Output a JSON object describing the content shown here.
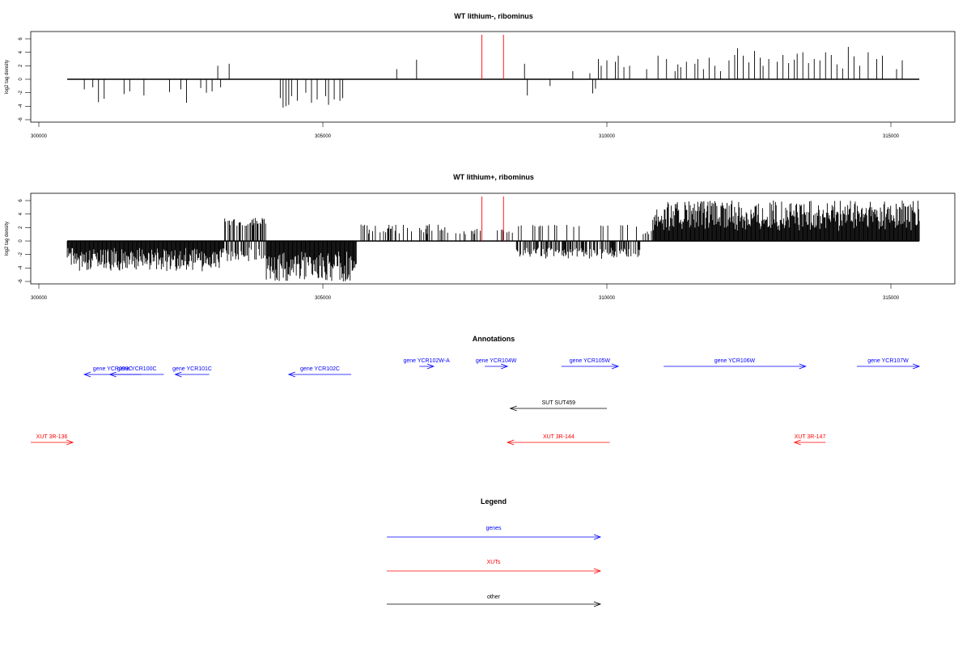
{
  "colors": {
    "axis": "#000000",
    "track": "#000000",
    "highlight": "#ff0000",
    "gene": "#0000ff",
    "xut": "#ff0000",
    "other": "#000000"
  },
  "chart_data": [
    {
      "type": "bar",
      "title": "WT lithium-, ribominus",
      "ylabel": "log2 tag density",
      "xlim": [
        300000,
        316000
      ],
      "ylim": [
        -6,
        7
      ],
      "xticks": [
        "300000",
        "305000",
        "310000",
        "315000"
      ],
      "yticks": [
        "-6",
        "-4",
        "-2",
        "0",
        "2",
        "4",
        "6"
      ],
      "baseline": [
        300500,
        315500
      ],
      "highlight_x": [
        307800,
        308180
      ],
      "x": [
        300800,
        300950,
        301050,
        301150,
        301500,
        301600,
        301850,
        302300,
        302500,
        302600,
        302850,
        302950,
        303050,
        303150,
        303200,
        303350,
        304250,
        304300,
        304350,
        304400,
        304450,
        304550,
        304700,
        304800,
        304900,
        305050,
        305100,
        305200,
        305300,
        305350,
        306300,
        306650,
        308550,
        308600,
        309000,
        309400,
        309700,
        309750,
        309800,
        309850,
        309900,
        310000,
        310150,
        310200,
        310300,
        310400,
        310700,
        310900,
        311050,
        311200,
        311250,
        311300,
        311400,
        311550,
        311600,
        311700,
        311800,
        311900,
        312000,
        312150,
        312250,
        312300,
        312400,
        312500,
        312600,
        312700,
        312750,
        312850,
        313000,
        313100,
        313200,
        313300,
        313350,
        313450,
        313550,
        313650,
        313750,
        313850,
        313950,
        314050,
        314150,
        314250,
        314350,
        314450,
        314600,
        314750,
        314850,
        315100,
        315200
      ],
      "values": [
        -1.5,
        -1.2,
        -3.4,
        -2.9,
        -2.2,
        -1.8,
        -2.4,
        -1.9,
        -1.5,
        -3.5,
        -1.3,
        -2.0,
        -1.8,
        2.0,
        -1.2,
        2.3,
        -2.8,
        -4.2,
        -4.0,
        -3.8,
        -2.5,
        -3.2,
        -2.0,
        -3.5,
        -3.0,
        -2.5,
        -3.8,
        -3.0,
        -3.2,
        -2.8,
        1.5,
        2.9,
        2.3,
        -2.4,
        -1.0,
        1.2,
        0.9,
        -2.1,
        -1.4,
        3.0,
        2.0,
        2.8,
        2.6,
        3.5,
        1.8,
        2.0,
        1.5,
        3.5,
        3.0,
        1.2,
        2.2,
        1.8,
        2.6,
        2.3,
        3.0,
        1.5,
        3.2,
        2.0,
        1.2,
        2.8,
        3.6,
        4.6,
        3.5,
        2.5,
        4.2,
        3.2,
        2.0,
        3.0,
        2.6,
        3.6,
        2.4,
        2.9,
        3.8,
        4.0,
        2.4,
        3.0,
        2.8,
        4.0,
        3.6,
        2.2,
        1.6,
        4.8,
        3.4,
        2.0,
        4.0,
        3.0,
        3.5,
        1.5,
        2.8
      ]
    },
    {
      "type": "bar",
      "title": "WT lithium+, ribominus",
      "ylabel": "log2 tag density",
      "xlim": [
        300000,
        316000
      ],
      "ylim": [
        -6,
        7
      ],
      "xticks": [
        "300000",
        "305000",
        "310000",
        "315000"
      ],
      "yticks": [
        "-6",
        "-4",
        "-2",
        "0",
        "2",
        "4",
        "6"
      ],
      "baseline": [
        300500,
        315500
      ],
      "highlight_x": [
        307800,
        308180
      ]
    },
    {
      "type": "table",
      "title": "Annotations",
      "features": [
        {
          "label": "gene YCR099C",
          "start": 300800,
          "end": 301800,
          "strand": "-",
          "kind": "gene",
          "row": 1
        },
        {
          "label": "gene YCR100C",
          "start": 301250,
          "end": 302200,
          "strand": "-",
          "kind": "gene",
          "row": 1
        },
        {
          "label": "gene YCR101C",
          "start": 302400,
          "end": 303000,
          "strand": "-",
          "kind": "gene",
          "row": 1
        },
        {
          "label": "gene YCR102C",
          "start": 304400,
          "end": 305500,
          "strand": "-",
          "kind": "gene",
          "row": 1
        },
        {
          "label": "gene YCR102W-A",
          "start": 306700,
          "end": 306950,
          "strand": "+",
          "kind": "gene",
          "row": 0
        },
        {
          "label": "gene YCR104W",
          "start": 307850,
          "end": 308250,
          "strand": "+",
          "kind": "gene",
          "row": 0
        },
        {
          "label": "gene YCR105W",
          "start": 309200,
          "end": 310200,
          "strand": "+",
          "kind": "gene",
          "row": 0
        },
        {
          "label": "gene YCR106W",
          "start": 311000,
          "end": 313500,
          "strand": "+",
          "kind": "gene",
          "row": 0
        },
        {
          "label": "gene YCR107W",
          "start": 314400,
          "end": 315500,
          "strand": "+",
          "kind": "gene",
          "row": 0
        },
        {
          "label": "SUT SUT459",
          "start": 308300,
          "end": 310000,
          "strand": "-",
          "kind": "other",
          "row": 2
        },
        {
          "label": "XUT 3R-136",
          "start": 299800,
          "end": 300600,
          "strand": "+",
          "kind": "xut",
          "row": 3
        },
        {
          "label": "XUT 3R-144",
          "start": 308250,
          "end": 310050,
          "strand": "-",
          "kind": "xut",
          "row": 3
        },
        {
          "label": "XUT 3R-147",
          "start": 313300,
          "end": 313850,
          "strand": "-",
          "kind": "xut",
          "row": 3
        }
      ]
    }
  ],
  "legend": {
    "title": "Legend",
    "items": [
      {
        "label": "genes",
        "kind": "gene"
      },
      {
        "label": "XUTs",
        "kind": "xut"
      },
      {
        "label": "other",
        "kind": "other"
      }
    ]
  }
}
